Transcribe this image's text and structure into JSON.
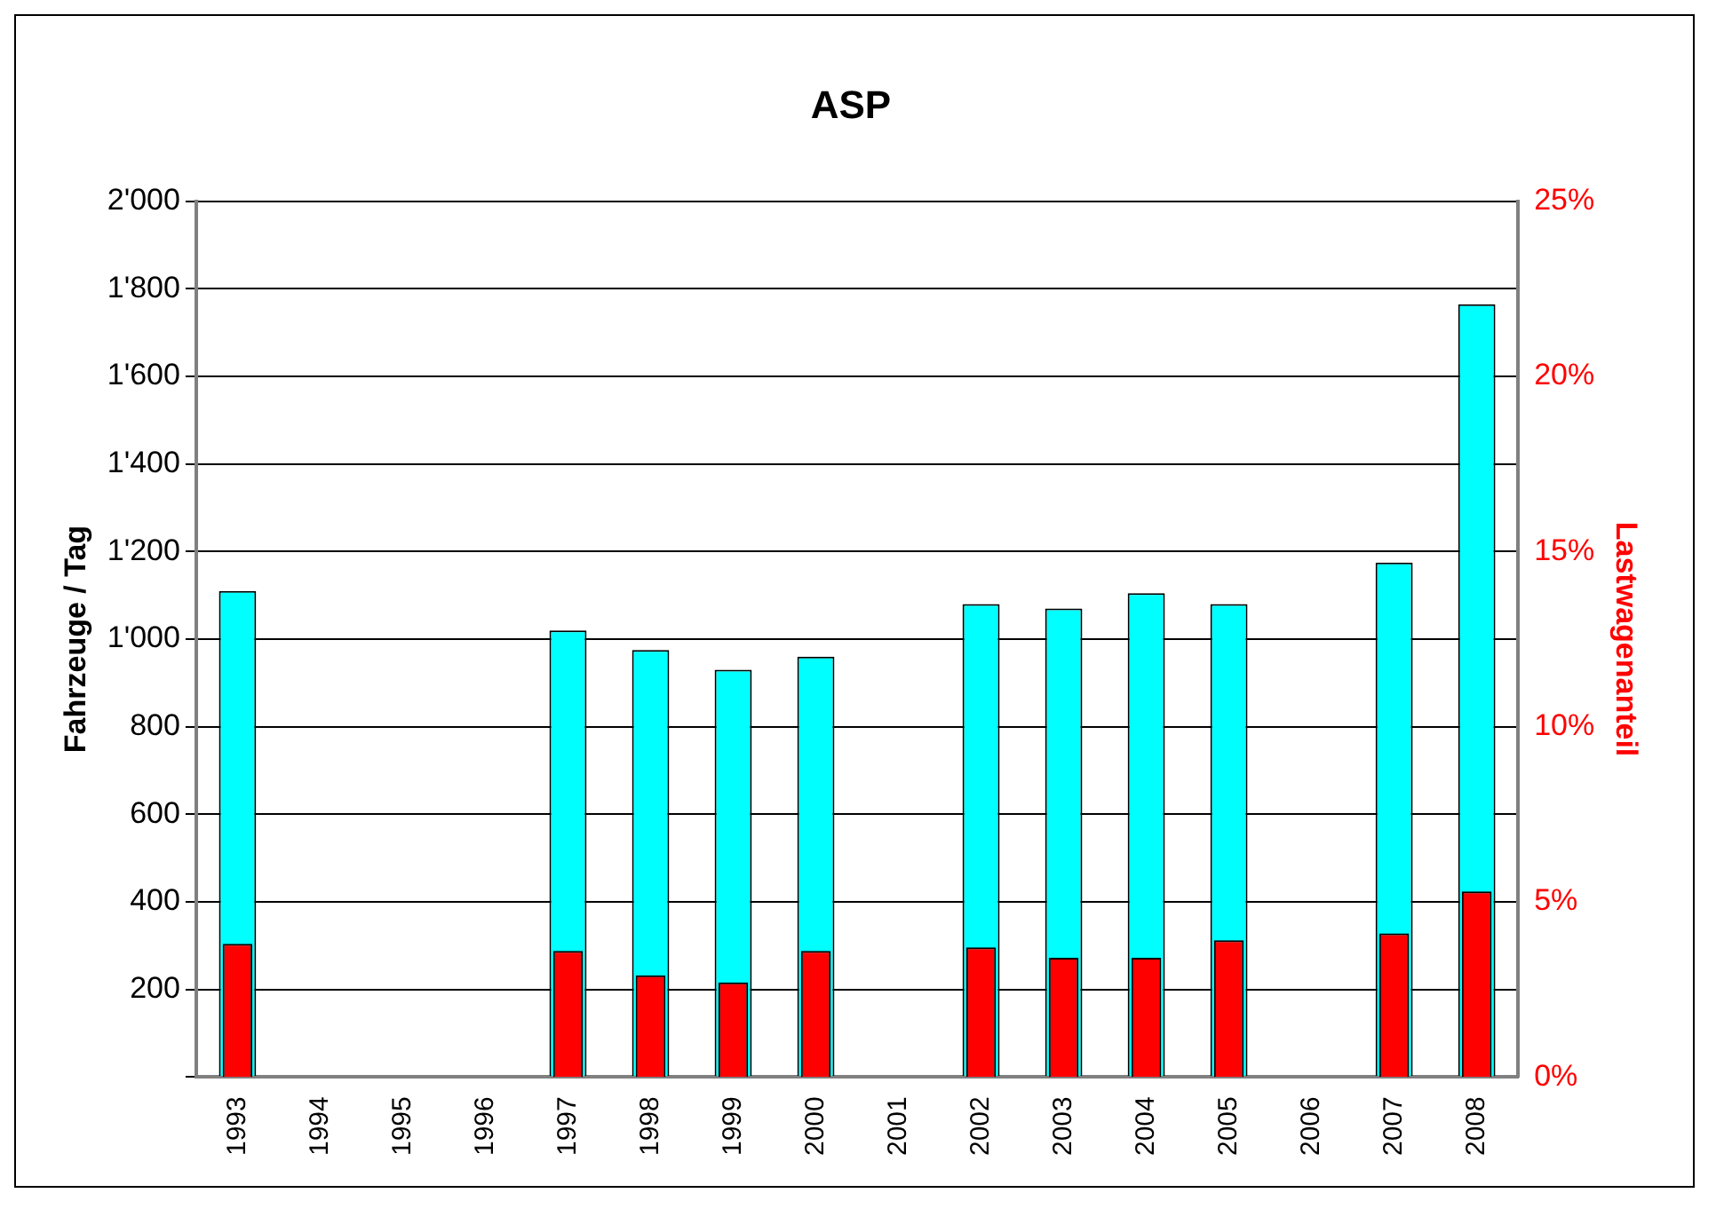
{
  "chart_data": {
    "type": "bar",
    "title": "ASP",
    "ylabel": "Fahrzeuge / Tag",
    "y2label": "Lastwagenanteil",
    "categories": [
      "1993",
      "1994",
      "1995",
      "1996",
      "1997",
      "1998",
      "1999",
      "2000",
      "2001",
      "2002",
      "2003",
      "2004",
      "2005",
      "2006",
      "2007",
      "2008"
    ],
    "series": [
      {
        "color": "#00ffff",
        "values": [
          1110,
          null,
          null,
          null,
          1020,
          975,
          930,
          960,
          null,
          1080,
          1070,
          1105,
          1080,
          null,
          1175,
          1765
        ]
      },
      {
        "axis": "y2",
        "color": "#ff0000",
        "values": [
          3.8,
          null,
          null,
          null,
          3.6,
          2.9,
          2.7,
          3.6,
          null,
          3.7,
          3.4,
          3.4,
          3.9,
          null,
          4.1,
          5.3
        ]
      }
    ],
    "ylim": [
      0,
      2000
    ],
    "yticks": [
      {
        "value": 0,
        "label": null
      },
      {
        "value": 200,
        "label": "200"
      },
      {
        "value": 400,
        "label": "400"
      },
      {
        "value": 600,
        "label": "600"
      },
      {
        "value": 800,
        "label": "800"
      },
      {
        "value": 1000,
        "label": "1'000"
      },
      {
        "value": 1200,
        "label": "1'200"
      },
      {
        "value": 1400,
        "label": "1'400"
      },
      {
        "value": 1600,
        "label": "1'600"
      },
      {
        "value": 1800,
        "label": "1'800"
      },
      {
        "value": 2000,
        "label": "2'000"
      }
    ],
    "y2lim": [
      0,
      25
    ],
    "y2ticks": [
      {
        "value": 0,
        "label": "0%"
      },
      {
        "value": 5,
        "label": "5%"
      },
      {
        "value": 10,
        "label": "10%"
      },
      {
        "value": 15,
        "label": "15%"
      },
      {
        "value": 20,
        "label": "20%"
      },
      {
        "value": 25,
        "label": "25%"
      }
    ],
    "grid": "y",
    "legend": false
  }
}
